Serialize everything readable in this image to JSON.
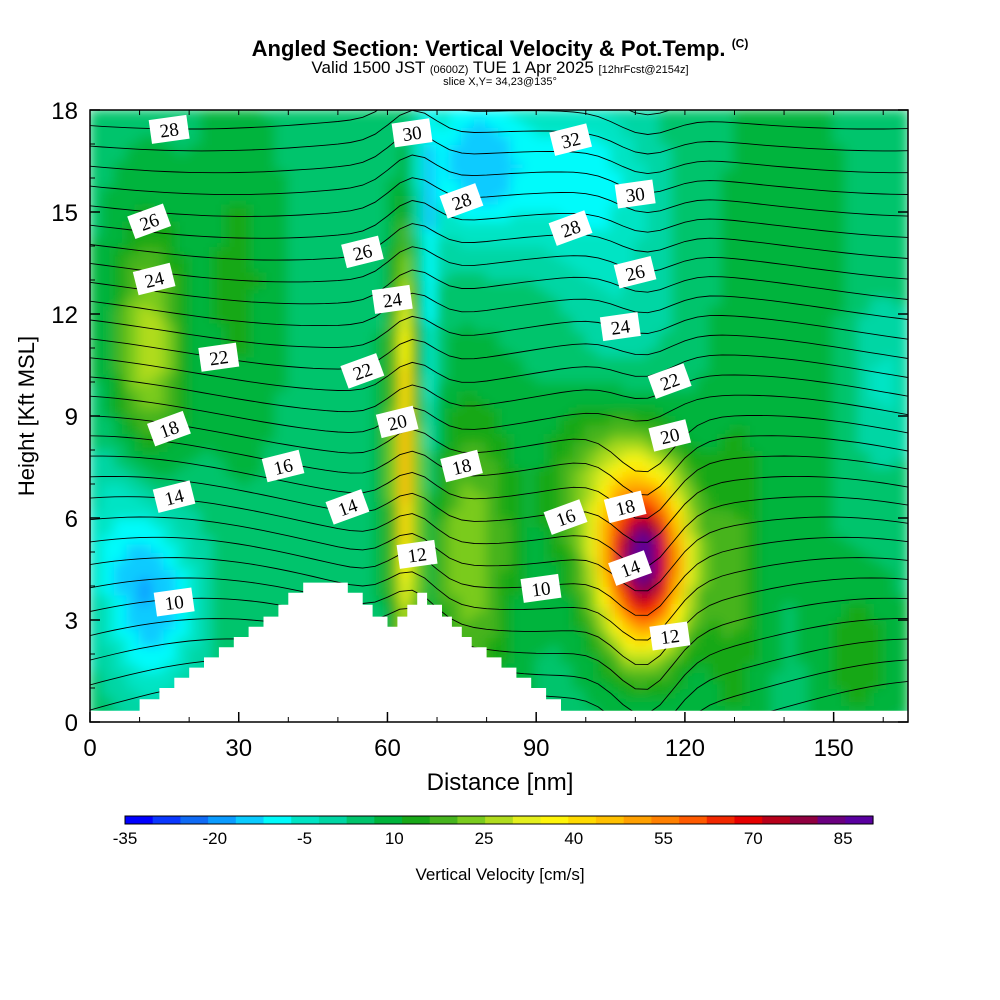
{
  "title": {
    "main": "Angled Section: Vertical Velocity & Pot.Temp.",
    "main_suffix": "(C)",
    "valid_prefix": "Valid 1500 JST",
    "valid_utc": "(0600Z)",
    "valid_date": "TUE 1 Apr 2025",
    "forecast": "[12hrFcst@2154z]",
    "slice": "slice X,Y= 34,23@135°"
  },
  "chart_data": {
    "type": "heatmap",
    "xlabel": "Distance [nm]",
    "ylabel": "Height [Kft MSL]",
    "xlim": [
      0,
      165
    ],
    "ylim": [
      0,
      18
    ],
    "xticks": [
      "0",
      "30",
      "60",
      "90",
      "120",
      "150"
    ],
    "xtick_values": [
      0,
      30,
      60,
      90,
      120,
      150
    ],
    "yticks": [
      "0",
      "3",
      "6",
      "9",
      "12",
      "15",
      "18"
    ],
    "ytick_values": [
      0,
      3,
      6,
      9,
      12,
      15,
      18
    ],
    "colorbar": {
      "label": "Vertical Velocity [cm/s]",
      "levels": [
        -35,
        -30,
        -25,
        -20,
        -15,
        -10,
        -5,
        0,
        5,
        10,
        15,
        20,
        25,
        30,
        35,
        40,
        45,
        50,
        55,
        60,
        65,
        70,
        75,
        80,
        85,
        90
      ],
      "tick_labels": [
        "-35",
        "-20",
        "-5",
        "10",
        "25",
        "40",
        "55",
        "70",
        "85"
      ],
      "tick_values": [
        -35,
        -20,
        -5,
        10,
        25,
        40,
        55,
        70,
        85
      ],
      "colors": [
        "#0000ff",
        "#0a37ff",
        "#0f6af5",
        "#0a9bff",
        "#0acbff",
        "#00fbfb",
        "#00e4c4",
        "#00d6a4",
        "#00c46c",
        "#00b43c",
        "#18a818",
        "#46b41e",
        "#7acb1e",
        "#b0dc1e",
        "#e4ef1e",
        "#fff50a",
        "#ffda00",
        "#ffc000",
        "#ffa000",
        "#ff8000",
        "#ff5a00",
        "#f22800",
        "#e60000",
        "#b8001a",
        "#900040",
        "#6b0080",
        "#5a00a0"
      ]
    },
    "terrain": [
      [
        0,
        0.33
      ],
      [
        10,
        0.33
      ],
      [
        10,
        0.67
      ],
      [
        14,
        0.67
      ],
      [
        14,
        1.0
      ],
      [
        17,
        1.0
      ],
      [
        17,
        1.3
      ],
      [
        20,
        1.3
      ],
      [
        20,
        1.6
      ],
      [
        23,
        1.6
      ],
      [
        23,
        1.9
      ],
      [
        26,
        1.9
      ],
      [
        26,
        2.2
      ],
      [
        29,
        2.2
      ],
      [
        29,
        2.5
      ],
      [
        32,
        2.5
      ],
      [
        32,
        2.8
      ],
      [
        35,
        2.8
      ],
      [
        35,
        3.1
      ],
      [
        38,
        3.1
      ],
      [
        38,
        3.45
      ],
      [
        40,
        3.45
      ],
      [
        40,
        3.8
      ],
      [
        43,
        3.8
      ],
      [
        43,
        4.1
      ],
      [
        52,
        4.1
      ],
      [
        52,
        3.8
      ],
      [
        55,
        3.8
      ],
      [
        55,
        3.45
      ],
      [
        57,
        3.45
      ],
      [
        57,
        3.1
      ],
      [
        60,
        3.1
      ],
      [
        60,
        2.8
      ],
      [
        62,
        2.8
      ],
      [
        62,
        3.1
      ],
      [
        64,
        3.1
      ],
      [
        64,
        3.45
      ],
      [
        66,
        3.45
      ],
      [
        66,
        3.8
      ],
      [
        68,
        3.8
      ],
      [
        68,
        3.45
      ],
      [
        71,
        3.45
      ],
      [
        71,
        3.1
      ],
      [
        73,
        3.1
      ],
      [
        73,
        2.8
      ],
      [
        75,
        2.8
      ],
      [
        75,
        2.5
      ],
      [
        77,
        2.5
      ],
      [
        77,
        2.2
      ],
      [
        80,
        2.2
      ],
      [
        80,
        1.9
      ],
      [
        83,
        1.9
      ],
      [
        83,
        1.6
      ],
      [
        86,
        1.6
      ],
      [
        86,
        1.3
      ],
      [
        89,
        1.3
      ],
      [
        89,
        1.0
      ],
      [
        92,
        1.0
      ],
      [
        92,
        0.67
      ],
      [
        95,
        0.67
      ],
      [
        95,
        0.33
      ],
      [
        165,
        0.33
      ],
      [
        165,
        0
      ],
      [
        0,
        0
      ]
    ],
    "contour_labels": [
      {
        "label": "10",
        "x": 17,
        "y": 3.5
      },
      {
        "label": "14",
        "x": 17,
        "y": 6.6
      },
      {
        "label": "18",
        "x": 16,
        "y": 8.6
      },
      {
        "label": "22",
        "x": 26,
        "y": 10.7
      },
      {
        "label": "24",
        "x": 13,
        "y": 13.0
      },
      {
        "label": "26",
        "x": 12,
        "y": 14.7
      },
      {
        "label": "28",
        "x": 16,
        "y": 17.4
      },
      {
        "label": "16",
        "x": 39,
        "y": 7.5
      },
      {
        "label": "14",
        "x": 52,
        "y": 6.3
      },
      {
        "label": "12",
        "x": 66,
        "y": 4.9
      },
      {
        "label": "20",
        "x": 62,
        "y": 8.8
      },
      {
        "label": "22",
        "x": 55,
        "y": 10.3
      },
      {
        "label": "24",
        "x": 61,
        "y": 12.4
      },
      {
        "label": "26",
        "x": 55,
        "y": 13.8
      },
      {
        "label": "28",
        "x": 75,
        "y": 15.3
      },
      {
        "label": "30",
        "x": 65,
        "y": 17.3
      },
      {
        "label": "18",
        "x": 75,
        "y": 7.5
      },
      {
        "label": "16",
        "x": 96,
        "y": 6.0
      },
      {
        "label": "10",
        "x": 91,
        "y": 3.9
      },
      {
        "label": "18",
        "x": 108,
        "y": 6.3
      },
      {
        "label": "14",
        "x": 109,
        "y": 4.5
      },
      {
        "label": "12",
        "x": 117,
        "y": 2.5
      },
      {
        "label": "20",
        "x": 117,
        "y": 8.4
      },
      {
        "label": "22",
        "x": 117,
        "y": 10.0
      },
      {
        "label": "24",
        "x": 107,
        "y": 11.6
      },
      {
        "label": "26",
        "x": 110,
        "y": 13.2
      },
      {
        "label": "28",
        "x": 97,
        "y": 14.5
      },
      {
        "label": "30",
        "x": 110,
        "y": 15.5
      },
      {
        "label": "32",
        "x": 97,
        "y": 17.1
      }
    ]
  }
}
